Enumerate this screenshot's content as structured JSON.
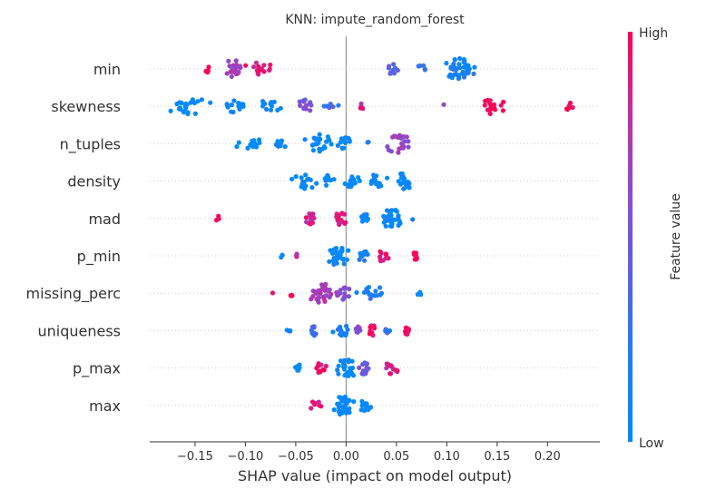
{
  "chart_data": {
    "type": "scatter",
    "subtype": "shap-beeswarm",
    "title": "KNN: impute_random_forest",
    "xlabel": "SHAP value (impact on model output)",
    "xlim": [
      -0.195,
      0.252
    ],
    "xticks": [
      -0.15,
      -0.1,
      -0.05,
      0.0,
      0.05,
      0.1,
      0.15,
      0.2
    ],
    "xtick_labels": [
      "−0.15",
      "−0.10",
      "−0.05",
      "0.00",
      "0.05",
      "0.10",
      "0.15",
      "0.20"
    ],
    "features": [
      "min",
      "skewness",
      "n_tuples",
      "density",
      "mad",
      "p_min",
      "missing_perc",
      "uniqueness",
      "p_max",
      "max"
    ],
    "colorbar": {
      "label": "Feature value",
      "high_label": "High",
      "low_label": "Low",
      "high_color": "#ff0052",
      "low_color": "#008bfb"
    },
    "series": [
      {
        "name": "min",
        "clusters": [
          {
            "center": -0.138,
            "spread": 0.004,
            "count": 4,
            "value": 1.0
          },
          {
            "center": -0.112,
            "spread": 0.01,
            "count": 22,
            "value": 0.7
          },
          {
            "center": -0.085,
            "spread": 0.012,
            "count": 16,
            "value": 0.9
          },
          {
            "center": 0.045,
            "spread": 0.008,
            "count": 10,
            "value": 0.35
          },
          {
            "center": 0.075,
            "spread": 0.008,
            "count": 5,
            "value": 0.35
          },
          {
            "center": 0.113,
            "spread": 0.013,
            "count": 42,
            "value": 0.15
          }
        ]
      },
      {
        "name": "skewness",
        "clusters": [
          {
            "center": -0.158,
            "spread": 0.018,
            "count": 22,
            "value": 0.0
          },
          {
            "center": -0.113,
            "spread": 0.01,
            "count": 14,
            "value": 0.1
          },
          {
            "center": -0.077,
            "spread": 0.01,
            "count": 14,
            "value": 0.15
          },
          {
            "center": -0.04,
            "spread": 0.007,
            "count": 14,
            "value": 0.55
          },
          {
            "center": -0.015,
            "spread": 0.006,
            "count": 6,
            "value": 0.3
          },
          {
            "center": 0.015,
            "spread": 0.004,
            "count": 5,
            "value": 0.85
          },
          {
            "center": 0.098,
            "spread": 0.002,
            "count": 1,
            "value": 0.7
          },
          {
            "center": 0.145,
            "spread": 0.01,
            "count": 18,
            "value": 1.0
          },
          {
            "center": 0.222,
            "spread": 0.006,
            "count": 6,
            "value": 1.0
          }
        ]
      },
      {
        "name": "n_tuples",
        "clusters": [
          {
            "center": -0.095,
            "spread": 0.012,
            "count": 14,
            "value": 0.05
          },
          {
            "center": -0.065,
            "spread": 0.006,
            "count": 8,
            "value": 0.05
          },
          {
            "center": -0.027,
            "spread": 0.01,
            "count": 24,
            "value": 0.05
          },
          {
            "center": 0.0,
            "spread": 0.006,
            "count": 14,
            "value": 0.05
          },
          {
            "center": 0.02,
            "spread": 0.002,
            "count": 2,
            "value": 0.1
          },
          {
            "center": 0.05,
            "spread": 0.012,
            "count": 24,
            "value": 0.65
          }
        ]
      },
      {
        "name": "density",
        "clusters": [
          {
            "center": -0.04,
            "spread": 0.01,
            "count": 18,
            "value": 0.05
          },
          {
            "center": -0.017,
            "spread": 0.007,
            "count": 12,
            "value": 0.05
          },
          {
            "center": 0.005,
            "spread": 0.008,
            "count": 14,
            "value": 0.05
          },
          {
            "center": 0.03,
            "spread": 0.008,
            "count": 14,
            "value": 0.05
          },
          {
            "center": 0.058,
            "spread": 0.006,
            "count": 22,
            "value": 0.05
          }
        ]
      },
      {
        "name": "mad",
        "clusters": [
          {
            "center": -0.127,
            "spread": 0.002,
            "count": 3,
            "value": 1.0
          },
          {
            "center": -0.036,
            "spread": 0.005,
            "count": 12,
            "value": 0.85
          },
          {
            "center": -0.005,
            "spread": 0.006,
            "count": 14,
            "value": 0.9
          },
          {
            "center": 0.02,
            "spread": 0.004,
            "count": 10,
            "value": 0.05
          },
          {
            "center": 0.045,
            "spread": 0.008,
            "count": 36,
            "value": 0.05
          },
          {
            "center": 0.067,
            "spread": 0.002,
            "count": 1,
            "value": 0.1
          }
        ]
      },
      {
        "name": "p_min",
        "clusters": [
          {
            "center": -0.065,
            "spread": 0.002,
            "count": 2,
            "value": 0.05
          },
          {
            "center": -0.05,
            "spread": 0.004,
            "count": 4,
            "value": 0.8
          },
          {
            "center": -0.008,
            "spread": 0.01,
            "count": 26,
            "value": 0.05
          },
          {
            "center": 0.015,
            "spread": 0.008,
            "count": 12,
            "value": 0.15
          },
          {
            "center": 0.035,
            "spread": 0.006,
            "count": 10,
            "value": 0.9
          },
          {
            "center": 0.069,
            "spread": 0.002,
            "count": 8,
            "value": 1.0
          }
        ]
      },
      {
        "name": "missing_perc",
        "clusters": [
          {
            "center": -0.073,
            "spread": 0.002,
            "count": 1,
            "value": 1.0
          },
          {
            "center": -0.054,
            "spread": 0.004,
            "count": 4,
            "value": 0.9
          },
          {
            "center": -0.025,
            "spread": 0.01,
            "count": 30,
            "value": 0.7
          },
          {
            "center": -0.005,
            "spread": 0.006,
            "count": 16,
            "value": 0.6
          },
          {
            "center": 0.025,
            "spread": 0.012,
            "count": 16,
            "value": 0.2
          },
          {
            "center": 0.075,
            "spread": 0.006,
            "count": 3,
            "value": 0.05
          }
        ]
      },
      {
        "name": "uniqueness",
        "clusters": [
          {
            "center": -0.055,
            "spread": 0.004,
            "count": 4,
            "value": 0.05
          },
          {
            "center": -0.033,
            "spread": 0.005,
            "count": 10,
            "value": 0.3
          },
          {
            "center": -0.005,
            "spread": 0.007,
            "count": 12,
            "value": 0.2
          },
          {
            "center": 0.012,
            "spread": 0.003,
            "count": 6,
            "value": 0.55
          },
          {
            "center": 0.026,
            "spread": 0.004,
            "count": 12,
            "value": 0.95
          },
          {
            "center": 0.042,
            "spread": 0.003,
            "count": 6,
            "value": 0.25
          },
          {
            "center": 0.06,
            "spread": 0.003,
            "count": 8,
            "value": 1.0
          }
        ]
      },
      {
        "name": "p_max",
        "clusters": [
          {
            "center": -0.047,
            "spread": 0.004,
            "count": 6,
            "value": 0.05
          },
          {
            "center": -0.025,
            "spread": 0.006,
            "count": 10,
            "value": 0.9
          },
          {
            "center": 0.0,
            "spread": 0.008,
            "count": 26,
            "value": 0.05
          },
          {
            "center": 0.018,
            "spread": 0.006,
            "count": 14,
            "value": 0.5
          },
          {
            "center": 0.045,
            "spread": 0.006,
            "count": 12,
            "value": 0.85
          }
        ]
      },
      {
        "name": "max",
        "clusters": [
          {
            "center": -0.03,
            "spread": 0.005,
            "count": 8,
            "value": 0.9
          },
          {
            "center": -0.003,
            "spread": 0.008,
            "count": 40,
            "value": 0.05
          },
          {
            "center": 0.02,
            "spread": 0.006,
            "count": 14,
            "value": 0.05
          }
        ]
      }
    ]
  }
}
